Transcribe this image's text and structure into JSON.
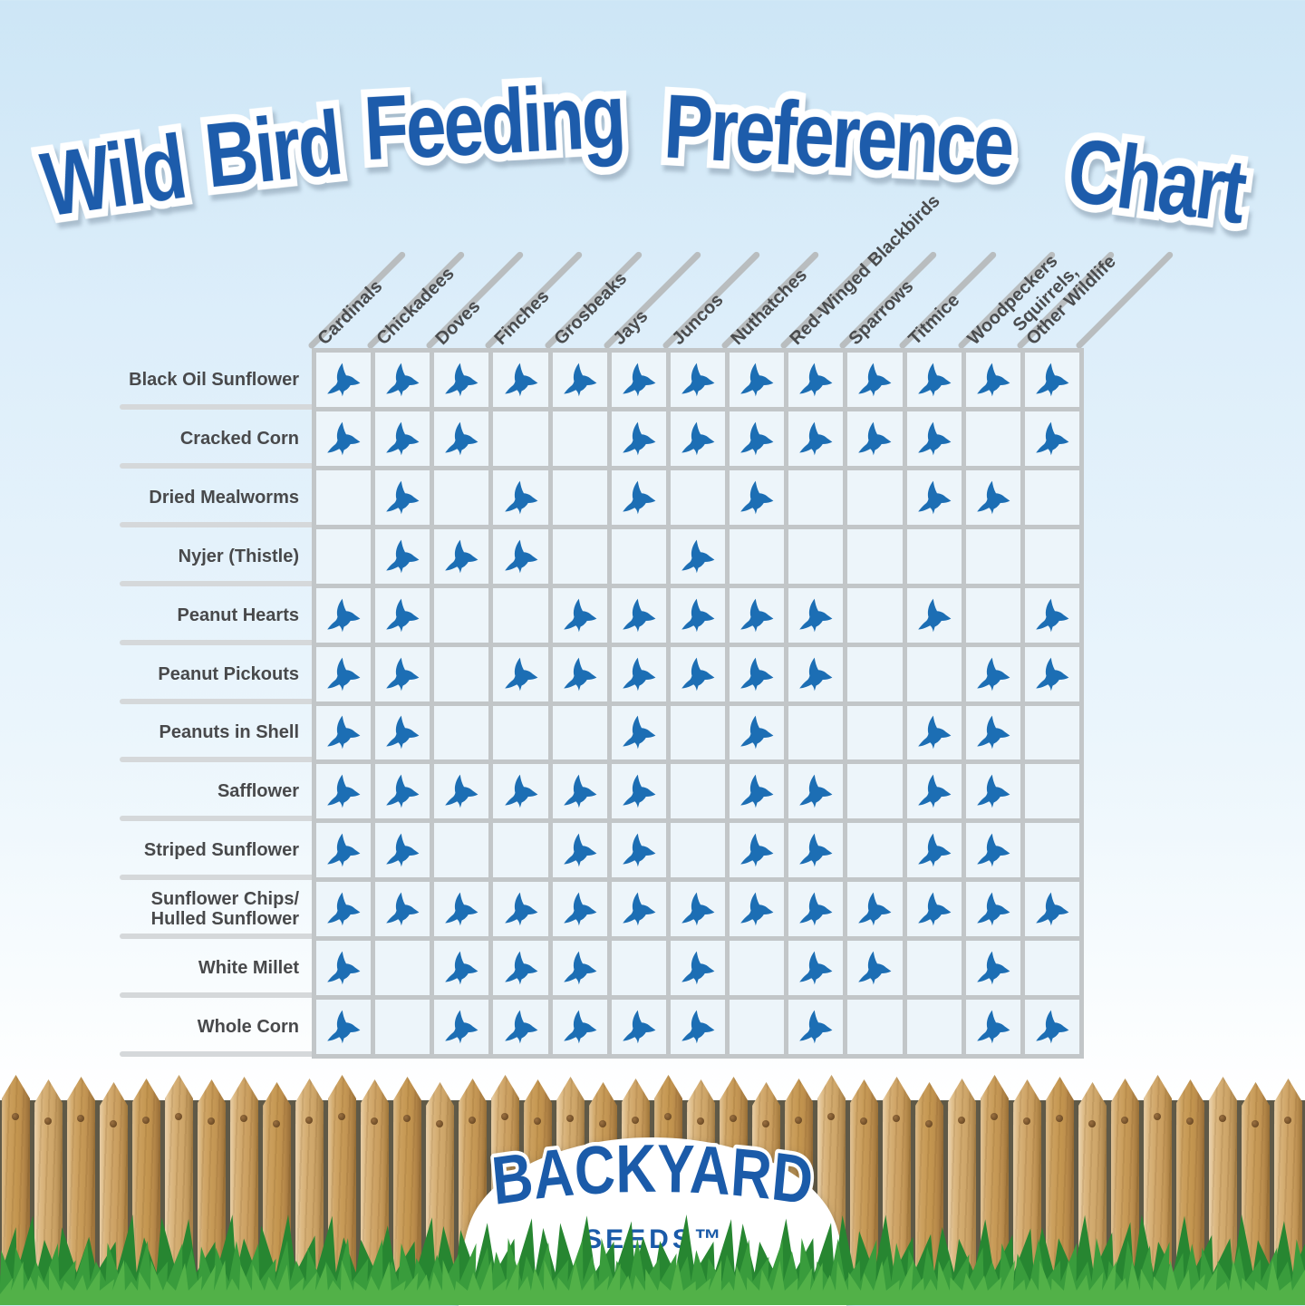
{
  "title": "Wild Bird Feeding Preference Chart",
  "chart_data": {
    "type": "table",
    "title": "Wild Bird Feeding Preference Chart",
    "legend_icon": "bird-icon",
    "columns": [
      "Cardinals",
      "Chickadees",
      "Doves",
      "Finches",
      "Grosbeaks",
      "Jays",
      "Juncos",
      "Nuthatches",
      "Red-Winged Blackbirds",
      "Sparrows",
      "Titmice",
      "Woodpeckers",
      "Squirrels,\nOther Wildlife"
    ],
    "rows": [
      {
        "label": "Black Oil Sunflower",
        "values": [
          1,
          1,
          1,
          1,
          1,
          1,
          1,
          1,
          1,
          1,
          1,
          1,
          1
        ]
      },
      {
        "label": "Cracked Corn",
        "values": [
          1,
          1,
          1,
          0,
          0,
          1,
          1,
          1,
          1,
          1,
          1,
          0,
          1
        ]
      },
      {
        "label": "Dried Mealworms",
        "values": [
          0,
          1,
          0,
          1,
          0,
          1,
          0,
          1,
          0,
          0,
          1,
          1,
          0
        ]
      },
      {
        "label": "Nyjer (Thistle)",
        "values": [
          0,
          1,
          1,
          1,
          0,
          0,
          1,
          0,
          0,
          0,
          0,
          0,
          0
        ]
      },
      {
        "label": "Peanut Hearts",
        "values": [
          1,
          1,
          0,
          0,
          1,
          1,
          1,
          1,
          1,
          0,
          1,
          0,
          1
        ]
      },
      {
        "label": "Peanut Pickouts",
        "values": [
          1,
          1,
          0,
          1,
          1,
          1,
          1,
          1,
          1,
          0,
          0,
          1,
          1
        ]
      },
      {
        "label": "Peanuts in Shell",
        "values": [
          1,
          1,
          0,
          0,
          0,
          1,
          0,
          1,
          0,
          0,
          1,
          1,
          0
        ]
      },
      {
        "label": "Safflower",
        "values": [
          1,
          1,
          1,
          1,
          1,
          1,
          0,
          1,
          1,
          0,
          1,
          1,
          0
        ]
      },
      {
        "label": "Striped Sunflower",
        "values": [
          1,
          1,
          0,
          0,
          1,
          1,
          0,
          1,
          1,
          0,
          1,
          1,
          0
        ]
      },
      {
        "label": "Sunflower Chips/\nHulled Sunflower",
        "values": [
          1,
          1,
          1,
          1,
          1,
          1,
          1,
          1,
          1,
          1,
          1,
          1,
          1
        ]
      },
      {
        "label": "White Millet",
        "values": [
          1,
          0,
          1,
          1,
          1,
          0,
          1,
          0,
          1,
          1,
          0,
          1,
          0
        ]
      },
      {
        "label": "Whole Corn",
        "values": [
          1,
          0,
          1,
          1,
          1,
          1,
          1,
          0,
          1,
          0,
          0,
          1,
          1
        ]
      }
    ]
  },
  "logo": {
    "line1": "BACKYARD",
    "line2": "SEEDS™"
  },
  "palette": {
    "title_blue": "#1d5cab",
    "bird_blue": "#1c6eb4",
    "grid_line": "#c2c6c8",
    "stripe_gray": "#b9bdbf",
    "label_gray": "#48494b",
    "cell_bg": "#edf5fa",
    "logo_blue": "#1b5ba9",
    "wood_light": "#e2c08b",
    "wood_dark": "#b8894a",
    "grass_back": "#278631",
    "grass_mid": "#399c3c",
    "grass_front": "#52b148"
  }
}
